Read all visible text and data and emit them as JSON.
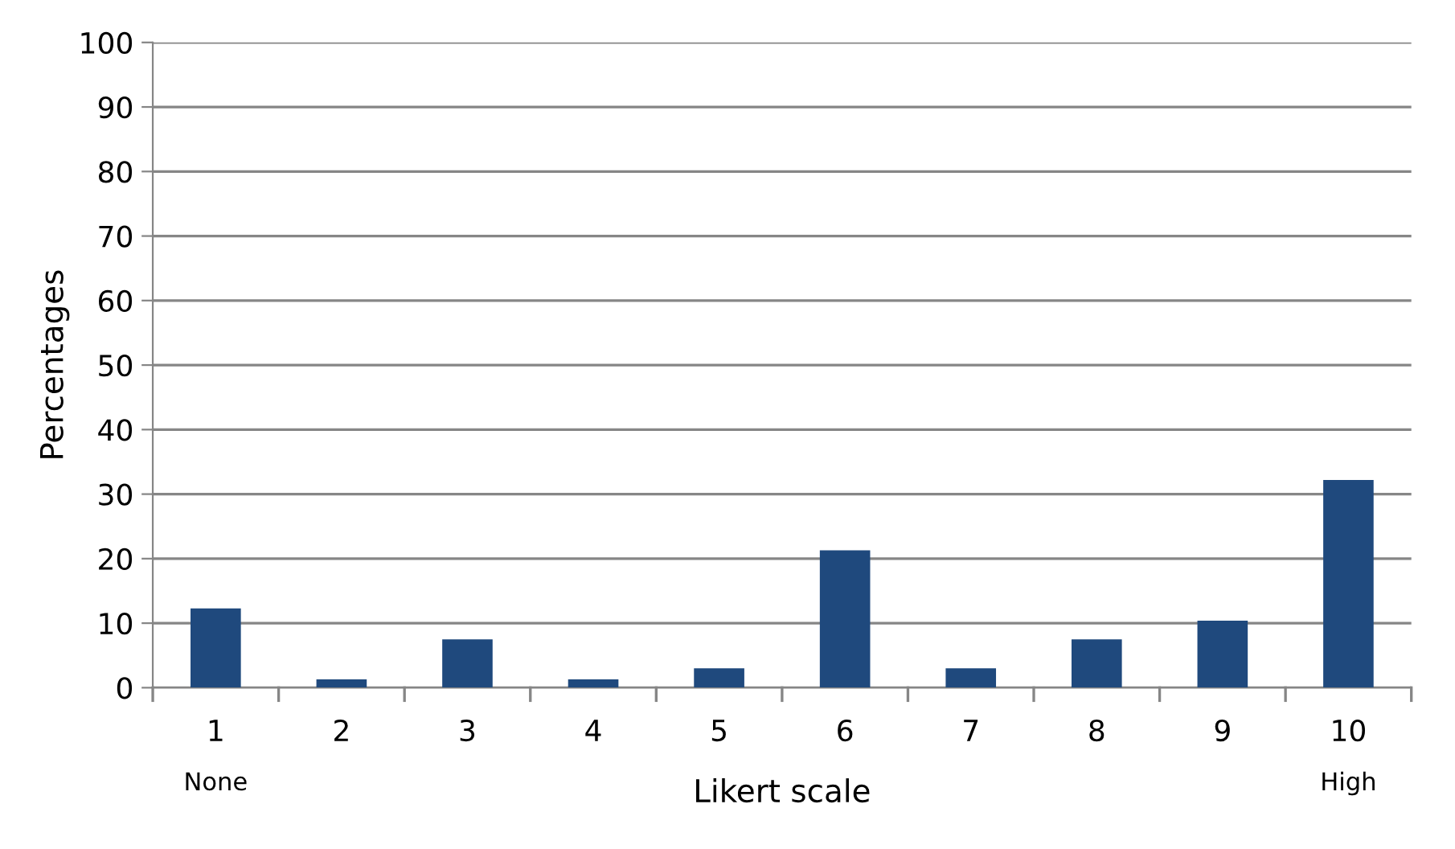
{
  "chart_data": {
    "type": "bar",
    "xlabel": "Likert scale",
    "ylabel": "Percentages",
    "categories": [
      "1",
      "2",
      "3",
      "4",
      "5",
      "6",
      "7",
      "8",
      "9",
      "10"
    ],
    "series": [
      {
        "color": "#1f497d",
        "values": [
          12.3,
          1.3,
          7.5,
          1.3,
          3.0,
          21.3,
          3.0,
          7.5,
          10.4,
          32.2
        ]
      }
    ],
    "ylim": [
      0,
      100
    ],
    "yticks": [
      0,
      10,
      20,
      30,
      40,
      50,
      60,
      70,
      80,
      90,
      100
    ],
    "grid": "y",
    "annotations": [
      "None",
      "High"
    ]
  }
}
